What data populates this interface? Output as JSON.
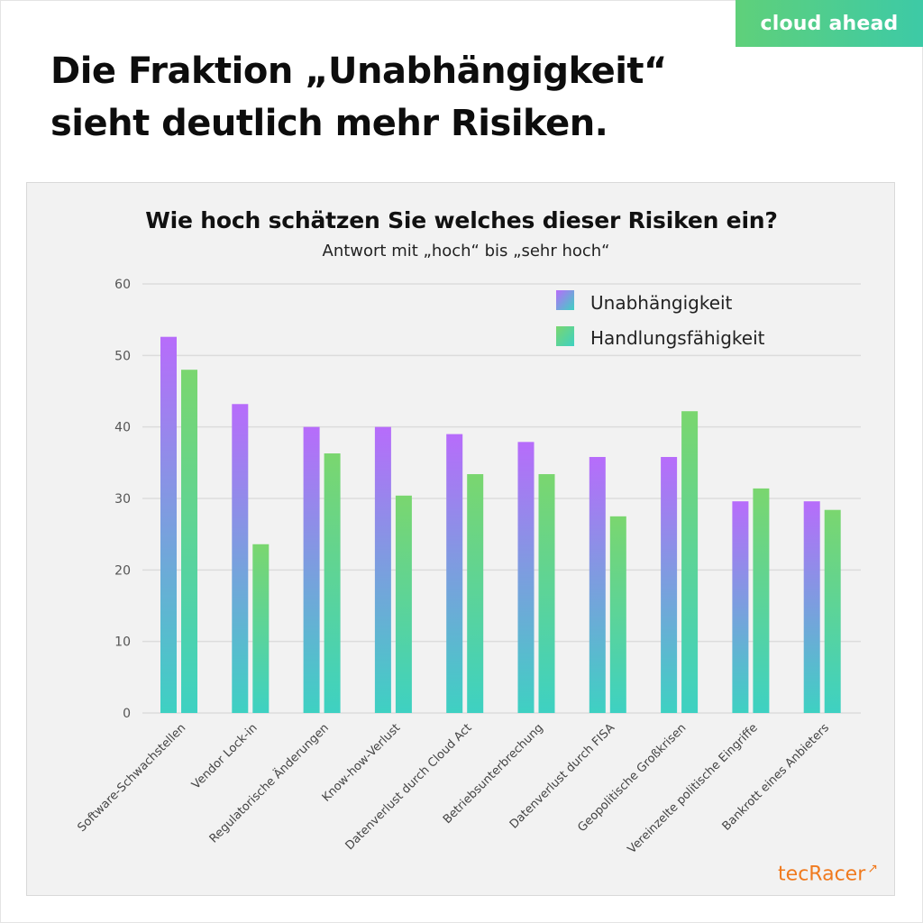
{
  "brand": {
    "badge_label": "cloud ahead",
    "logo_text": "tecRacer",
    "logo_icon": "arrow-up-right-icon"
  },
  "headline": {
    "line1": "Die Fraktion „Unabhängigkeit“",
    "line2": "sieht deutlich mehr Risiken."
  },
  "colors": {
    "series1_top": "#b76cfb",
    "series1_bottom": "#3ed1c2",
    "series2_top": "#7ad66f",
    "series2_bottom": "#3ed1c2",
    "grid": "#dcdcdc",
    "panel_bg": "#f2f2f2",
    "badge_from": "#5fd07a",
    "badge_to": "#3dcaa6",
    "logo": "#f07a1e"
  },
  "chart_data": {
    "type": "bar",
    "title": "Wie hoch schätzen Sie welches dieser Risiken ein?",
    "subtitle": "Antwort mit „hoch“ bis „sehr hoch“",
    "xlabel": "",
    "ylabel": "",
    "ylim": [
      0,
      60
    ],
    "yticks": [
      0,
      10,
      20,
      30,
      40,
      50,
      60
    ],
    "grid": true,
    "legend_position": "top-right",
    "categories": [
      "Software-Schwachstellen",
      "Vendor Lock-in",
      "Regulatorische Änderungen",
      "Know-how-Verlust",
      "Datenverlust durch Cloud Act",
      "Betriebsunterbrechung",
      "Datenverlust durch FISA",
      "Geopolitische Großkrisen",
      "Vereinzelte politische Eingriffe",
      "Bankrott eines Anbieters"
    ],
    "series": [
      {
        "name": "Unabhängigkeit",
        "values": [
          52.6,
          43.2,
          40.0,
          40.0,
          39.0,
          37.9,
          35.8,
          35.8,
          29.6,
          29.6
        ]
      },
      {
        "name": "Handlungsfähigkeit",
        "values": [
          48.0,
          23.6,
          36.3,
          30.4,
          33.4,
          33.4,
          27.5,
          42.2,
          31.4,
          28.4
        ]
      }
    ]
  }
}
